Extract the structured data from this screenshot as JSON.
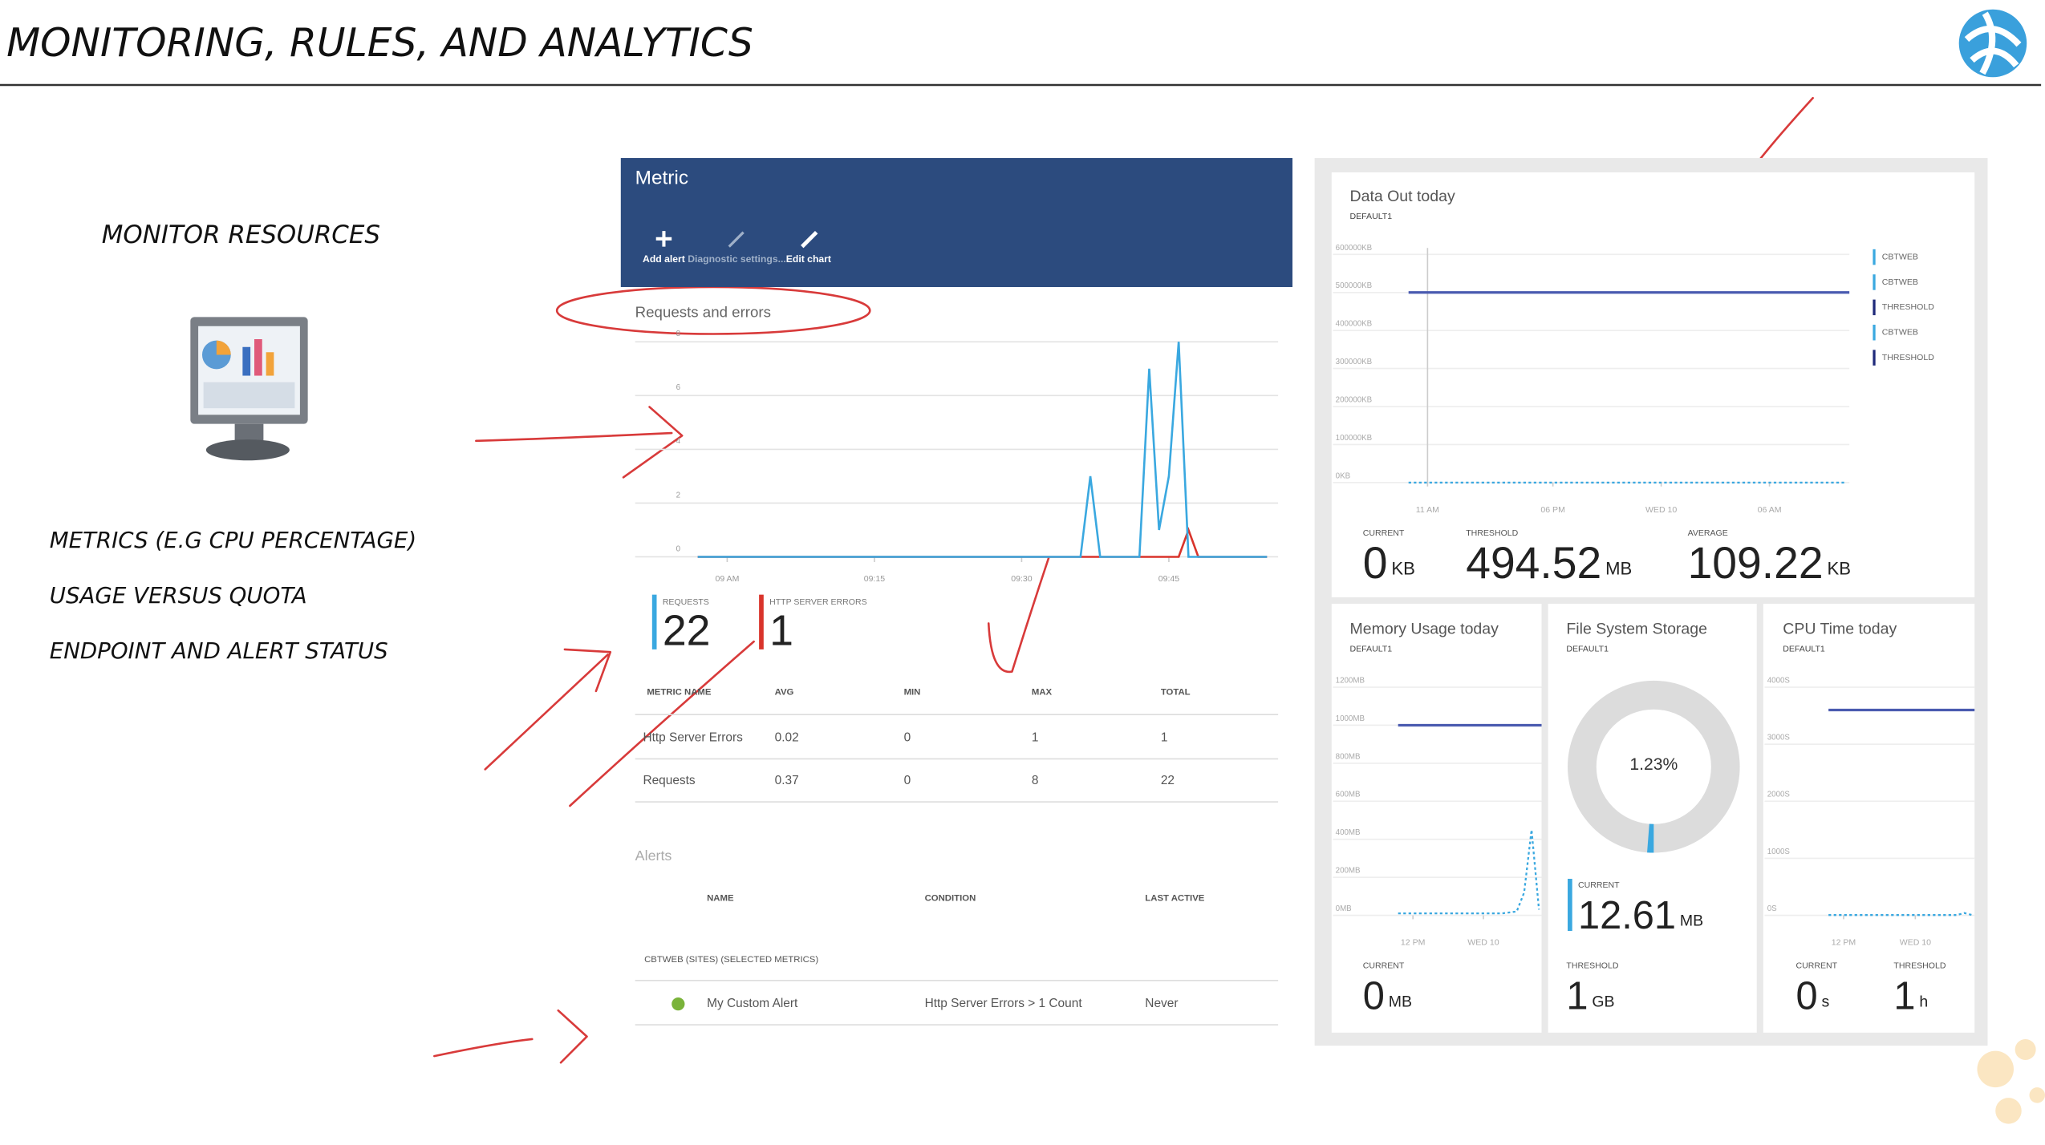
{
  "header": {
    "title": "MONITORING, RULES, AND ANALYTICS"
  },
  "left": {
    "heading": "MONITOR RESOURCES",
    "bullets": [
      "METRICS (E.G CPU PERCENTAGE)",
      "USAGE VERSUS QUOTA",
      "ENDPOINT AND ALERT STATUS"
    ]
  },
  "metric_panel": {
    "title": "Metric",
    "toolbar": [
      "Add alert",
      "Diagnostic settings...",
      "Edit chart"
    ],
    "chart": {
      "type": "line",
      "title": "Requests and errors",
      "x": [
        -3,
        -2,
        -1,
        0,
        1,
        2,
        3,
        4,
        5,
        6,
        7,
        8,
        9,
        10,
        11,
        12,
        13,
        14,
        15,
        16,
        17,
        18,
        19,
        20,
        21,
        22,
        23,
        24,
        25,
        26,
        27,
        28,
        29,
        30,
        31,
        32,
        33,
        34,
        35,
        36,
        37,
        38,
        39,
        40,
        41,
        42,
        43,
        44,
        45,
        46,
        47,
        48,
        49,
        50,
        51,
        52,
        53,
        54,
        55
      ],
      "series": [
        {
          "name": "REQUESTS",
          "color": "#3aa8e0",
          "values": [
            0,
            0,
            0,
            0,
            0,
            0,
            0,
            0,
            0,
            0,
            0,
            0,
            0,
            0,
            0,
            0,
            0,
            0,
            0,
            0,
            0,
            0,
            0,
            0,
            0,
            0,
            0,
            0,
            0,
            0,
            0,
            0,
            0,
            0,
            0,
            0,
            0,
            0,
            0,
            0,
            3,
            0,
            0,
            0,
            0,
            0,
            7,
            1,
            3,
            8,
            0,
            0,
            0,
            0,
            0,
            0,
            0,
            0,
            0
          ]
        },
        {
          "name": "HTTP SERVER ERRORS",
          "color": "#d9342b",
          "values": [
            0,
            0,
            0,
            0,
            0,
            0,
            0,
            0,
            0,
            0,
            0,
            0,
            0,
            0,
            0,
            0,
            0,
            0,
            0,
            0,
            0,
            0,
            0,
            0,
            0,
            0,
            0,
            0,
            0,
            0,
            0,
            0,
            0,
            0,
            0,
            0,
            0,
            0,
            0,
            0,
            0,
            0,
            0,
            0,
            0,
            0,
            0,
            0,
            0,
            0,
            1,
            0,
            0,
            0,
            0,
            0,
            0,
            0,
            0
          ]
        }
      ],
      "xlim": [
        -3,
        56
      ],
      "xticks": [
        {
          "value": 0,
          "label": "09 AM"
        },
        {
          "value": 15,
          "label": "09:15"
        },
        {
          "value": 30,
          "label": "09:30"
        },
        {
          "value": 45,
          "label": "09:45"
        }
      ],
      "ylim": [
        0,
        8
      ],
      "yticks": [
        0,
        2,
        4,
        6,
        8
      ],
      "grid": true
    },
    "summary": [
      {
        "label": "REQUESTS",
        "value": 22,
        "color": "#3aa8e0"
      },
      {
        "label": "HTTP SERVER ERRORS",
        "value": 1,
        "color": "#d9342b"
      }
    ],
    "table": {
      "headers": [
        "METRIC NAME",
        "AVG",
        "MIN",
        "MAX",
        "TOTAL"
      ],
      "rows": [
        [
          "Http Server Errors",
          0.02,
          0,
          1,
          1
        ],
        [
          "Requests",
          0.37,
          0,
          8,
          22
        ]
      ]
    },
    "alerts": {
      "title": "Alerts",
      "headers": [
        "NAME",
        "CONDITION",
        "LAST ACTIVE"
      ],
      "group": "CBTWEB (SITES) (SELECTED METRICS)",
      "rows": [
        [
          "My Custom Alert",
          "Http Server Errors > 1 Count",
          "Never"
        ]
      ]
    }
  },
  "dashboard": {
    "data_out": {
      "title": "Data Out today",
      "subtitle": "DEFAULT1",
      "ylim": [
        0,
        600000
      ],
      "yticks": [
        {
          "value": 0,
          "label": "0KB"
        },
        {
          "value": 100000,
          "label": "100000KB"
        },
        {
          "value": 200000,
          "label": "200000KB"
        },
        {
          "value": 300000,
          "label": "300000KB"
        },
        {
          "value": 400000,
          "label": "400000KB"
        },
        {
          "value": 500000,
          "label": "500000KB"
        },
        {
          "value": 600000,
          "label": "600000KB"
        }
      ],
      "xlim": [
        0,
        23
      ],
      "xticks": [
        {
          "value": 1,
          "label": "11 AM"
        },
        {
          "value": 7.6,
          "label": "06 PM"
        },
        {
          "value": 13.3,
          "label": "WED 10"
        },
        {
          "value": 19,
          "label": "06 AM"
        }
      ],
      "values": [
        0,
        0,
        0,
        0,
        0,
        0,
        0,
        0,
        0,
        0,
        0,
        0,
        0,
        0,
        0,
        0,
        0,
        0,
        0,
        0,
        0,
        0,
        0,
        0
      ],
      "color": "#3aa8e0",
      "threshold": 500000,
      "threshold_color": "#4a5bb0",
      "legend": [
        {
          "name": "CBTWEB",
          "color": "#3aa8e0"
        },
        {
          "name": "CBTWEB",
          "color": "#3aa8e0"
        },
        {
          "name": "THRESHOLD",
          "color": "#1f2a7a"
        },
        {
          "name": "CBTWEB",
          "color": "#3aa8e0"
        },
        {
          "name": "THRESHOLD",
          "color": "#1f2a7a"
        }
      ],
      "stats": [
        {
          "label": "CURRENT",
          "value": 0,
          "unit": "KB"
        },
        {
          "label": "THRESHOLD",
          "value": 494.52,
          "unit": "MB"
        },
        {
          "label": "AVERAGE",
          "value": 109.22,
          "unit": "KB"
        }
      ]
    },
    "memory": {
      "title": "Memory Usage today",
      "subtitle": "DEFAULT1",
      "ylim": [
        0,
        1200
      ],
      "yticks": [
        {
          "value": 0,
          "label": "0MB"
        },
        {
          "value": 200,
          "label": "200MB"
        },
        {
          "value": 400,
          "label": "400MB"
        },
        {
          "value": 600,
          "label": "600MB"
        },
        {
          "value": 800,
          "label": "800MB"
        },
        {
          "value": 1000,
          "label": "1000MB"
        },
        {
          "value": 1200,
          "label": "1200MB"
        }
      ],
      "xlim": [
        0,
        19
      ],
      "xticks": [
        {
          "value": 2,
          "label": "12 PM"
        },
        {
          "value": 11.5,
          "label": "WED 10"
        }
      ],
      "values": [
        10,
        10,
        10,
        10,
        10,
        10,
        10,
        10,
        10,
        10,
        10,
        10,
        10,
        10,
        10,
        15,
        20,
        120,
        450,
        30
      ],
      "color": "#3aa8e0",
      "threshold": 1000,
      "threshold_color": "#4a5bb0",
      "stats": [
        {
          "label": "CURRENT",
          "value": 0,
          "unit": "MB"
        }
      ]
    },
    "file_system": {
      "title": "File System Storage",
      "subtitle": "DEFAULT1",
      "donut": {
        "value": 1.23,
        "value_label": "1.23%",
        "color": "#3aa8e0"
      },
      "stats": [
        {
          "label": "CURRENT",
          "value": 12.61,
          "unit": "MB"
        },
        {
          "label": "THRESHOLD",
          "value": 1,
          "unit": "GB"
        }
      ]
    },
    "cpu": {
      "title": "CPU Time today",
      "subtitle": "DEFAULT1",
      "ylim": [
        0,
        4000
      ],
      "yticks": [
        {
          "value": 0,
          "label": "0S"
        },
        {
          "value": 1000,
          "label": "1000S"
        },
        {
          "value": 2000,
          "label": "2000S"
        },
        {
          "value": 3000,
          "label": "3000S"
        },
        {
          "value": 4000,
          "label": "4000S"
        }
      ],
      "xlim": [
        0,
        19
      ],
      "xticks": [
        {
          "value": 2,
          "label": "12 PM"
        },
        {
          "value": 11.5,
          "label": "WED 10"
        }
      ],
      "values": [
        5,
        5,
        5,
        5,
        5,
        5,
        5,
        5,
        5,
        5,
        5,
        5,
        5,
        5,
        5,
        5,
        5,
        5,
        40,
        5
      ],
      "color": "#3aa8e0",
      "threshold": 3600,
      "threshold_color": "#4a5bb0",
      "stats": [
        {
          "label": "CURRENT",
          "value": 0,
          "unit": "s"
        },
        {
          "label": "THRESHOLD",
          "value": 1,
          "unit": "h"
        }
      ]
    }
  }
}
